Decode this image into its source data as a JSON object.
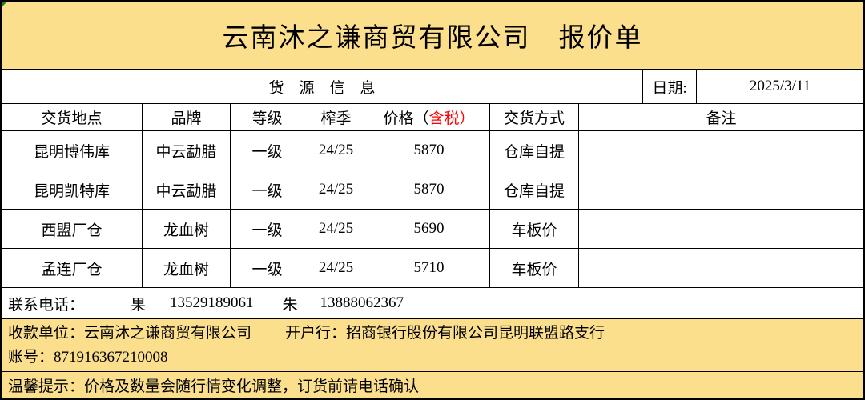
{
  "title": "云南沐之谦商贸有限公司　报价单",
  "info": {
    "section_label": "货　源　信　息",
    "date_label": "日期:",
    "date_value": "2025/3/11"
  },
  "table": {
    "headers": {
      "location": "交货地点",
      "brand": "品牌",
      "grade": "等级",
      "season": "榨季",
      "price_prefix": "价格（",
      "price_red": "含税）",
      "delivery": "交货方式",
      "remark": "备注"
    },
    "rows": [
      [
        "昆明博伟库",
        "中云勐腊",
        "一级",
        "24/25",
        "5870",
        "仓库自提",
        ""
      ],
      [
        "昆明凯特库",
        "中云勐腊",
        "一级",
        "24/25",
        "5870",
        "仓库自提",
        ""
      ],
      [
        "西盟厂仓",
        "龙血树",
        "一级",
        "24/25",
        "5690",
        "车板价",
        ""
      ],
      [
        "孟连厂仓",
        "龙血树",
        "一级",
        "24/25",
        "5710",
        "车板价",
        ""
      ]
    ]
  },
  "contact": {
    "label": "联系电话：",
    "contact1_name": "果",
    "contact1_phone": "13529189061",
    "contact2_name": "朱",
    "contact2_phone": "13888062367"
  },
  "bank": {
    "payee": "收款单位：云南沐之谦商贸有限公司",
    "bank_branch": "开户行：招商银行股份有限公司昆明联盟路支行",
    "account": "账号：871916367210008"
  },
  "notice": "温馨提示：价格及数量会随行情变化调整，订货前请电话确认",
  "colors": {
    "header_fill": "#FBDF8D",
    "highlight_red": "#FF0000",
    "corner_green": "#1E7E34"
  }
}
